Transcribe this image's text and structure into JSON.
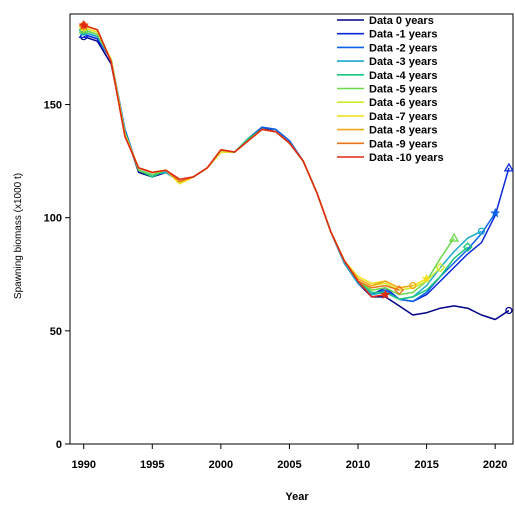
{
  "chart_data": {
    "type": "line",
    "title": "",
    "xlabel": "Year",
    "ylabel": "Spawning biomass (x1000 t)",
    "xlim": [
      1989,
      2021.3
    ],
    "ylim": [
      0,
      190
    ],
    "xticks": [
      1990,
      1995,
      2000,
      2005,
      2010,
      2015,
      2020
    ],
    "yticks": [
      0,
      50,
      100,
      150
    ],
    "grid": false,
    "legend_position": "top-right",
    "series": [
      {
        "name": "Data 0 years",
        "color": "#00008b",
        "marker": "o",
        "x": [
          1990,
          1991,
          1992,
          1993,
          1994,
          1995,
          1996,
          1997,
          1998,
          1999,
          2000,
          2001,
          2002,
          2003,
          2004,
          2005,
          2006,
          2007,
          2008,
          2009,
          2010,
          2011,
          2012,
          2013,
          2014,
          2015,
          2016,
          2017,
          2018,
          2019,
          2020,
          2021
        ],
        "y": [
          180,
          178,
          168,
          138,
          120,
          118,
          120,
          116,
          118,
          122,
          129,
          129,
          134,
          140,
          138,
          133,
          125,
          111,
          94,
          80,
          71,
          65,
          65,
          61,
          57,
          58,
          60,
          61,
          60,
          57,
          55,
          59
        ]
      },
      {
        "name": "Data -1 years",
        "color": "#0a28d8",
        "marker": "^",
        "x": [
          1990,
          1991,
          1992,
          1993,
          1994,
          1995,
          1996,
          1997,
          1998,
          1999,
          2000,
          2001,
          2002,
          2003,
          2004,
          2005,
          2006,
          2007,
          2008,
          2009,
          2010,
          2011,
          2012,
          2013,
          2014,
          2015,
          2016,
          2017,
          2018,
          2019,
          2020,
          2021
        ],
        "y": [
          181,
          179,
          170,
          139,
          121,
          119,
          120,
          116,
          118,
          122,
          129,
          129,
          135,
          140,
          139,
          134,
          125,
          111,
          94,
          80,
          71,
          66,
          69,
          64,
          63,
          66,
          72,
          78,
          84,
          89,
          101,
          122
        ]
      },
      {
        "name": "Data -2 years",
        "color": "#0a62e8",
        "marker": "*",
        "x": [
          1990,
          1991,
          1992,
          1993,
          1994,
          1995,
          1996,
          1997,
          1998,
          1999,
          2000,
          2001,
          2002,
          2003,
          2004,
          2005,
          2006,
          2007,
          2008,
          2009,
          2010,
          2011,
          2012,
          2013,
          2014,
          2015,
          2016,
          2017,
          2018,
          2019,
          2020
        ],
        "y": [
          182,
          180,
          170,
          139,
          121,
          119,
          120,
          116,
          118,
          122,
          129,
          129,
          135,
          140,
          139,
          134,
          125,
          111,
          94,
          80,
          71,
          66,
          68,
          64,
          63,
          67,
          74,
          80,
          86,
          93,
          102
        ]
      },
      {
        "name": "Data -3 years",
        "color": "#18aacc",
        "marker": "o",
        "x": [
          1990,
          1991,
          1992,
          1993,
          1994,
          1995,
          1996,
          1997,
          1998,
          1999,
          2000,
          2001,
          2002,
          2003,
          2004,
          2005,
          2006,
          2007,
          2008,
          2009,
          2010,
          2011,
          2012,
          2013,
          2014,
          2015,
          2016,
          2017,
          2018,
          2019
        ],
        "y": [
          182,
          180,
          170,
          138,
          121,
          119,
          120,
          116,
          118,
          122,
          129,
          129,
          135,
          139,
          138,
          133,
          125,
          111,
          94,
          80,
          71,
          66,
          67,
          64,
          65,
          70,
          78,
          85,
          91,
          94
        ]
      },
      {
        "name": "Data -4 years",
        "color": "#18c87a",
        "marker": "d",
        "x": [
          1990,
          1991,
          1992,
          1993,
          1994,
          1995,
          1996,
          1997,
          1998,
          1999,
          2000,
          2001,
          2002,
          2003,
          2004,
          2005,
          2006,
          2007,
          2008,
          2009,
          2010,
          2011,
          2012,
          2013,
          2014,
          2015,
          2016,
          2017,
          2018
        ],
        "y": [
          183,
          181,
          170,
          138,
          121,
          118,
          121,
          116,
          118,
          122,
          130,
          129,
          135,
          139,
          138,
          133,
          125,
          111,
          94,
          81,
          72,
          67,
          67,
          64,
          65,
          68,
          74,
          82,
          87
        ]
      },
      {
        "name": "Data -5 years",
        "color": "#6ad84a",
        "marker": "^",
        "x": [
          1990,
          1991,
          1992,
          1993,
          1994,
          1995,
          1996,
          1997,
          1998,
          1999,
          2000,
          2001,
          2002,
          2003,
          2004,
          2005,
          2006,
          2007,
          2008,
          2009,
          2010,
          2011,
          2012,
          2013,
          2014,
          2015,
          2016,
          2017
        ],
        "y": [
          183,
          181,
          170,
          137,
          121,
          119,
          121,
          116,
          118,
          122,
          129,
          129,
          134,
          139,
          138,
          133,
          125,
          111,
          94,
          81,
          72,
          68,
          69,
          66,
          67,
          72,
          82,
          91
        ]
      },
      {
        "name": "Data -6 years",
        "color": "#d0ea28",
        "marker": "d",
        "x": [
          1990,
          1991,
          1992,
          1993,
          1994,
          1995,
          1996,
          1997,
          1998,
          1999,
          2000,
          2001,
          2002,
          2003,
          2004,
          2005,
          2006,
          2007,
          2008,
          2009,
          2010,
          2011,
          2012,
          2013,
          2014,
          2015,
          2016
        ],
        "y": [
          184,
          182,
          170,
          137,
          122,
          120,
          121,
          115,
          118,
          122,
          129,
          129,
          134,
          139,
          138,
          133,
          125,
          111,
          94,
          81,
          73,
          70,
          71,
          68,
          69,
          72,
          78
        ]
      },
      {
        "name": "Data -7 years",
        "color": "#f0e020",
        "marker": "*",
        "x": [
          1990,
          1991,
          1992,
          1993,
          1994,
          1995,
          1996,
          1997,
          1998,
          1999,
          2000,
          2001,
          2002,
          2003,
          2004,
          2005,
          2006,
          2007,
          2008,
          2009,
          2010,
          2011,
          2012,
          2013,
          2014,
          2015
        ],
        "y": [
          184,
          182,
          170,
          137,
          122,
          120,
          121,
          115,
          118,
          122,
          129,
          129,
          134,
          139,
          138,
          133,
          125,
          111,
          94,
          81,
          74,
          71,
          72,
          69,
          70,
          73
        ]
      },
      {
        "name": "Data -8 years",
        "color": "#f4a818",
        "marker": "o",
        "x": [
          1990,
          1991,
          1992,
          1993,
          1994,
          1995,
          1996,
          1997,
          1998,
          1999,
          2000,
          2001,
          2002,
          2003,
          2004,
          2005,
          2006,
          2007,
          2008,
          2009,
          2010,
          2011,
          2012,
          2013,
          2014
        ],
        "y": [
          185,
          183,
          169,
          136,
          122,
          120,
          121,
          116,
          118,
          122,
          130,
          129,
          134,
          139,
          138,
          133,
          125,
          111,
          94,
          81,
          73,
          70,
          72,
          69,
          70
        ]
      },
      {
        "name": "Data -9 years",
        "color": "#ec7418",
        "marker": "d",
        "x": [
          1990,
          1991,
          1992,
          1993,
          1994,
          1995,
          1996,
          1997,
          1998,
          1999,
          2000,
          2001,
          2002,
          2003,
          2004,
          2005,
          2006,
          2007,
          2008,
          2009,
          2010,
          2011,
          2012,
          2013
        ],
        "y": [
          185,
          183,
          169,
          136,
          122,
          120,
          121,
          116,
          118,
          122,
          130,
          129,
          134,
          139,
          138,
          133,
          125,
          111,
          94,
          81,
          72,
          69,
          70,
          68
        ]
      },
      {
        "name": "Data -10 years",
        "color": "#e02814",
        "marker": "*",
        "x": [
          1990,
          1991,
          1992,
          1993,
          1994,
          1995,
          1996,
          1997,
          1998,
          1999,
          2000,
          2001,
          2002,
          2003,
          2004,
          2005,
          2006,
          2007,
          2008,
          2009,
          2010,
          2011,
          2012
        ],
        "y": [
          185,
          183,
          169,
          136,
          122,
          120,
          121,
          117,
          118,
          122,
          130,
          129,
          134,
          139,
          138,
          133,
          125,
          111,
          94,
          81,
          72,
          65,
          66
        ]
      }
    ]
  }
}
